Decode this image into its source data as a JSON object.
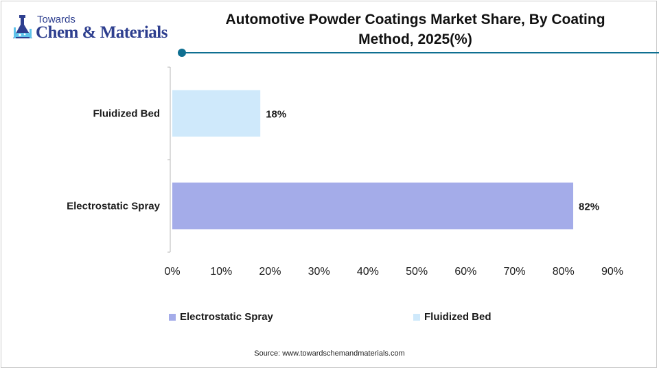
{
  "brand": {
    "line1": "Towards",
    "line2": "Chem & Materials",
    "color": "#2e3f8f"
  },
  "header": {
    "accent_color": "#0f6f91"
  },
  "source": "Source:  www.towardschemandmaterials.com",
  "chart_data": {
    "type": "bar",
    "orientation": "horizontal",
    "title": "Automotive Powder Coatings Market Share, By Coating Method, 2025(%)",
    "categories": [
      "Fluidized Bed",
      "Electrostatic Spray"
    ],
    "values": [
      18,
      82
    ],
    "data_labels": [
      "18%",
      "82%"
    ],
    "colors": [
      "#cfe9fb",
      "#a4ace9"
    ],
    "xlim": [
      0,
      90
    ],
    "xticks": [
      "0%",
      "10%",
      "20%",
      "30%",
      "40%",
      "50%",
      "60%",
      "70%",
      "80%",
      "90%"
    ],
    "xlabel": "",
    "ylabel": "",
    "grid": false,
    "legend": {
      "placement": "bottom",
      "entries": [
        {
          "name": "Electrostatic Spray",
          "color": "#a4ace9"
        },
        {
          "name": "Fluidized Bed",
          "color": "#cfe9fb"
        }
      ]
    }
  }
}
